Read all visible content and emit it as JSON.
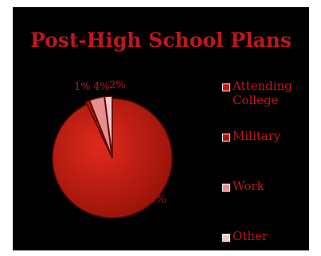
{
  "chart_data": {
    "type": "pie",
    "title": "Post-High School Plans",
    "categories": [
      "Attending College",
      "Military",
      "Work",
      "Other"
    ],
    "values": [
      93,
      1,
      4,
      2
    ],
    "data_labels": [
      "93%",
      "1%",
      "4%",
      "2%"
    ],
    "colors": [
      "#c8180f",
      "#b01409",
      "#e88e8e",
      "#f2c8c8"
    ],
    "legend_position": "right"
  },
  "background_color": "#000000",
  "text_color": "#c0161c"
}
